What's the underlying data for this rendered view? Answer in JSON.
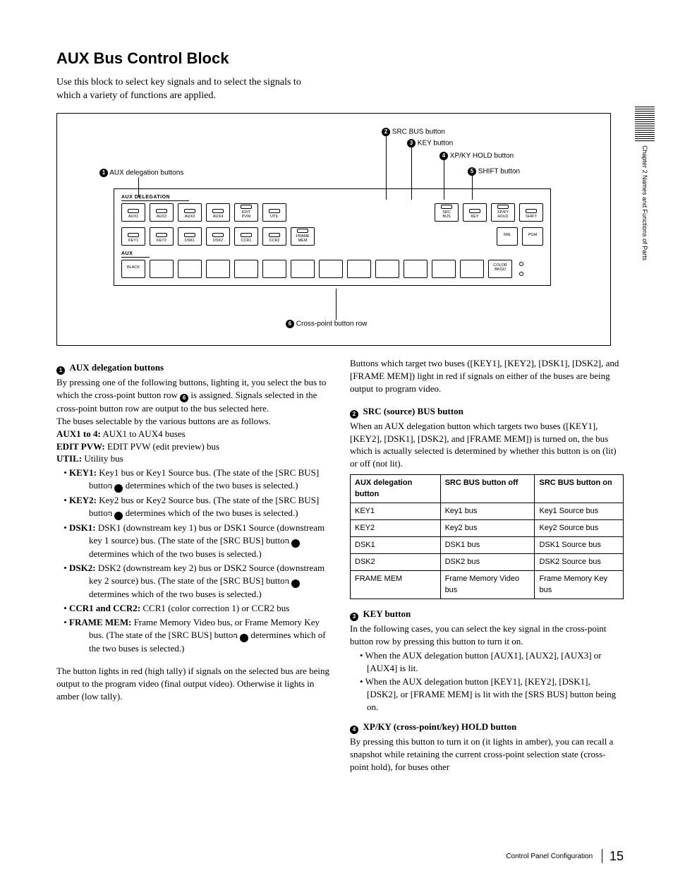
{
  "title": "AUX Bus Control Block",
  "intro": "Use this block to select key signals and to select the signals to which a variety of functions are applied.",
  "sidetab": "Chapter 2  Names and Functions of Parts",
  "diagram": {
    "callouts": {
      "c1": "AUX delegation buttons",
      "c2": "SRC BUS button",
      "c3": "KEY button",
      "c4": "XP/KY HOLD button",
      "c5": "SHIFT button",
      "c6": "Cross-point button row"
    },
    "sections": {
      "aux_del": "AUX DELEGATION",
      "aux": "AUX"
    },
    "row1": {
      "b1": "AUX1",
      "b2": "AUX2",
      "b3": "AUX3",
      "b4": "AUX4",
      "b5": "EDIT\nPVW",
      "b6": "UTIL",
      "b7": "SRC\nBUS",
      "b8": "KEY",
      "b9": "XP/KY\nHOLD",
      "b10": "SHIFT"
    },
    "row2": {
      "b1": "KEY1",
      "b2": "KEY2",
      "b3": "DSK1",
      "b4": "DSK2",
      "b5": "CCR1",
      "b6": "CCR2",
      "b7": "FRAME\nMEM",
      "b8": "M/E",
      "b9": "PGM"
    },
    "row3": {
      "b1": "BLACK",
      "b2": "COLOR\nBKGD"
    }
  },
  "left": {
    "s1": {
      "title": "AUX delegation buttons",
      "p1": "By pressing one of the following buttons, lighting it, you select the bus to which the cross-point button row ",
      "p1b": " is assigned. Signals selected in the cross-point button row are output to the bus selected here.",
      "p2": "The buses selectable by the various buttons are as follows.",
      "aux14_l": "AUX1 to 4:",
      "aux14_v": " AUX1 to AUX4 buses",
      "edit_l": "EDIT PVW:",
      "edit_v": " EDIT PVW (edit preview) bus",
      "util_l": "UTIL:",
      "util_v": " Utility bus",
      "key1_l": "KEY1:",
      "key1_v": " Key1 bus or Key1 Source bus. (The state of the [SRC BUS] button ",
      "key1_t": " determines which of the two buses is selected.)",
      "key2_l": "KEY2:",
      "key2_v": " Key2 bus or Key2 Source bus. (The state of the [SRC BUS] button ",
      "key2_t": " determines which of the two buses is selected.)",
      "dsk1_l": "DSK1:",
      "dsk1_v": " DSK1 (downstream key 1) bus or DSK1 Source (downstream key 1 source) bus.  (The state of the [SRC BUS] button ",
      "dsk1_t": " determines which of the two buses is selected.)",
      "dsk2_l": "DSK2:",
      "dsk2_v": " DSK2 (downstream key 2) bus or DSK2 Source (downstream key 2 source) bus.  (The state of the [SRC BUS] button ",
      "dsk2_t": " determines which of the two buses is selected.)",
      "ccr_l": "CCR1 and CCR2:",
      "ccr_v": " CCR1 (color correction 1) or CCR2 bus",
      "fm_l": "FRAME MEM:",
      "fm_v": " Frame Memory Video bus, or Frame Memory Key bus. (The state of the [SRC BUS] button ",
      "fm_t": " determines which of the two buses is selected.)",
      "p3": "The button lights in red (high tally) if signals on the selected bus are being output to the program video (final output video). Otherwise it lights in amber (low tally)."
    }
  },
  "right": {
    "top": "Buttons which target two buses ([KEY1], [KEY2], [DSK1], [DSK2], and [FRAME MEM]) light in red if signals on either of the buses are being output to program video.",
    "s2": {
      "title": "SRC (source) BUS button",
      "p": "When an AUX delegation button which targets two buses ([KEY1], [KEY2], [DSK1], [DSK2], and [FRAME MEM]) is turned on, the bus which is actually selected is determined by whether this button is on (lit) or off (not lit)."
    },
    "table": {
      "h1": "AUX delegation button",
      "h2": "SRC BUS button off",
      "h3": "SRC BUS button on",
      "rows": [
        [
          "KEY1",
          "Key1 bus",
          "Key1 Source bus"
        ],
        [
          "KEY2",
          "Key2 bus",
          "Key2 Source bus"
        ],
        [
          "DSK1",
          "DSK1 bus",
          "DSK1 Source bus"
        ],
        [
          "DSK2",
          "DSK2 bus",
          "DSK2 Source bus"
        ],
        [
          "FRAME MEM",
          "Frame Memory Video bus",
          "Frame Memory Key bus"
        ]
      ]
    },
    "s3": {
      "title": "KEY button",
      "p": "In the following cases, you can select the key signal in the cross-point button row by pressing this button to turn it on.",
      "i1": "When the AUX delegation button [AUX1], [AUX2], [AUX3] or [AUX4] is lit.",
      "i2": "When the AUX delegation button [KEY1], [KEY2], [DSK1], [DSK2], or [FRAME MEM] is lit with the [SRS BUS] button being on."
    },
    "s4": {
      "title": "XP/KY (cross-point/key) HOLD button",
      "p": "By pressing this button to turn it on (it lights in amber), you can recall a snapshot while retaining the current cross-point selection state (cross-point hold), for buses other"
    }
  },
  "footer": {
    "label": "Control Panel Configuration",
    "page": "15"
  }
}
